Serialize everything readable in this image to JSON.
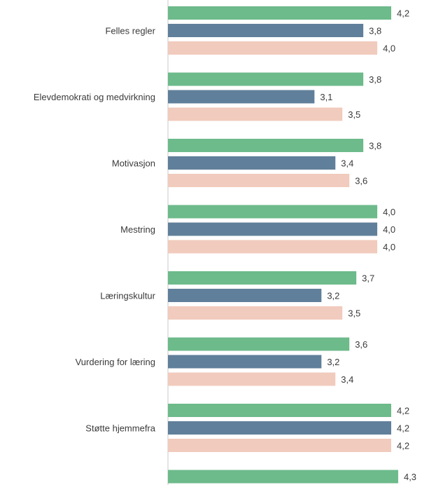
{
  "chart_data": {
    "type": "bar",
    "orientation": "horizontal",
    "categories": [
      "Felles regler",
      "Elevdemokrati og medvirkning",
      "Motivasjon",
      "Mestring",
      "Læringskultur",
      "Vurdering for læring",
      "Støtte hjemmefra",
      ""
    ],
    "series": [
      {
        "color": "#6dba8b",
        "values": [
          4.2,
          3.8,
          3.8,
          4.0,
          3.7,
          3.6,
          4.2,
          4.3
        ]
      },
      {
        "color": "#607f9a",
        "values": [
          3.8,
          3.1,
          3.4,
          4.0,
          3.2,
          3.2,
          4.2,
          null
        ]
      },
      {
        "color": "#f1cbbd",
        "values": [
          4.0,
          3.5,
          3.6,
          4.0,
          3.5,
          3.4,
          4.2,
          null
        ]
      }
    ],
    "value_labels": [
      [
        "4,2",
        "3,8",
        "3,8",
        "4,0",
        "3,7",
        "3,6",
        "4,2",
        "4,3"
      ],
      [
        "3,8",
        "3,1",
        "3,4",
        "4,0",
        "3,2",
        "3,2",
        "4,2",
        ""
      ],
      [
        "4,0",
        "3,5",
        "3,6",
        "4,0",
        "3,5",
        "3,4",
        "4,2",
        ""
      ]
    ],
    "xlim": [
      1,
      4.4
    ],
    "grid": false,
    "legend": "none"
  }
}
